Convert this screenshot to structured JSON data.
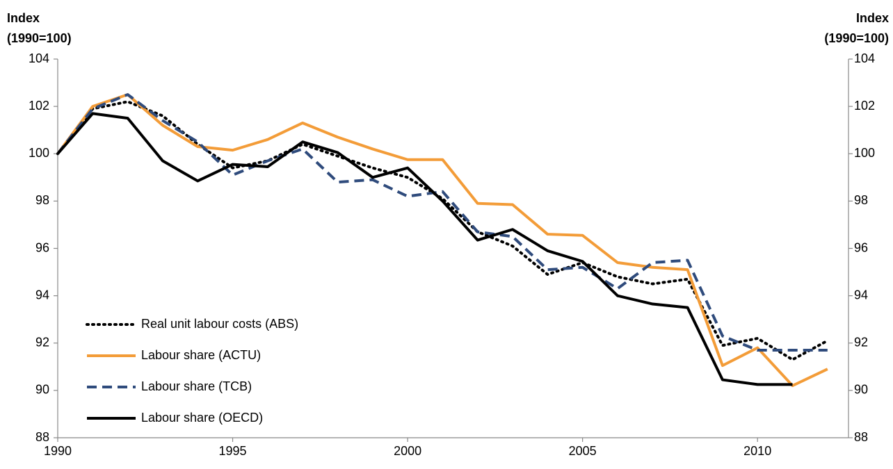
{
  "chart_data": {
    "type": "line",
    "y_label_lines": [
      "Index",
      "(1990=100)"
    ],
    "y2_label_lines": [
      "Index",
      "(1990=100)"
    ],
    "x": [
      1990,
      1991,
      1992,
      1993,
      1994,
      1995,
      1996,
      1997,
      1998,
      1999,
      2000,
      2001,
      2002,
      2003,
      2004,
      2005,
      2006,
      2007,
      2008,
      2009,
      2010,
      2011,
      2012
    ],
    "series": [
      {
        "name": "Real unit labour costs (ABS)",
        "color": "#000000",
        "style": "dotted",
        "values": [
          100,
          101.9,
          102.2,
          101.6,
          100.4,
          99.4,
          99.7,
          100.4,
          99.9,
          99.4,
          99.0,
          98.1,
          96.7,
          96.1,
          94.9,
          95.4,
          94.8,
          94.5,
          94.7,
          91.9,
          92.2,
          91.3,
          92.1
        ]
      },
      {
        "name": "Labour share (ACTU)",
        "color": "#F39C38",
        "style": "solid",
        "values": [
          100,
          102.0,
          102.5,
          101.2,
          100.3,
          100.15,
          100.6,
          101.3,
          100.7,
          100.2,
          99.75,
          99.75,
          97.9,
          97.85,
          96.6,
          96.55,
          95.4,
          95.2,
          95.1,
          91.05,
          91.8,
          90.2,
          90.9
        ]
      },
      {
        "name": "Labour share (TCB)",
        "color": "#2F4B7C",
        "style": "dashed",
        "values": [
          100,
          101.9,
          102.5,
          101.4,
          100.5,
          99.1,
          99.7,
          100.2,
          98.8,
          98.9,
          98.2,
          98.4,
          96.7,
          96.5,
          95.1,
          95.2,
          94.3,
          95.4,
          95.5,
          92.3,
          91.7,
          91.7,
          91.7
        ]
      },
      {
        "name": "Labour share (OECD)",
        "color": "#000000",
        "style": "solid",
        "values": [
          100,
          101.7,
          101.5,
          99.7,
          98.85,
          99.55,
          99.45,
          100.5,
          100.05,
          99.0,
          99.4,
          98.0,
          96.35,
          96.8,
          95.9,
          95.45,
          94.0,
          93.65,
          93.5,
          90.45,
          90.25,
          90.25,
          null
        ]
      }
    ],
    "xlim": [
      1990,
      2012.6
    ],
    "xticks": [
      1990,
      1995,
      2000,
      2005,
      2010
    ],
    "ylim": [
      88,
      104
    ],
    "yticks": [
      88,
      90,
      92,
      94,
      96,
      98,
      100,
      102,
      104
    ],
    "y2lim": [
      88,
      104
    ],
    "y2ticks": [
      88,
      90,
      92,
      94,
      96,
      98,
      100,
      102,
      104
    ],
    "grid": false,
    "legend": "lower-left"
  }
}
